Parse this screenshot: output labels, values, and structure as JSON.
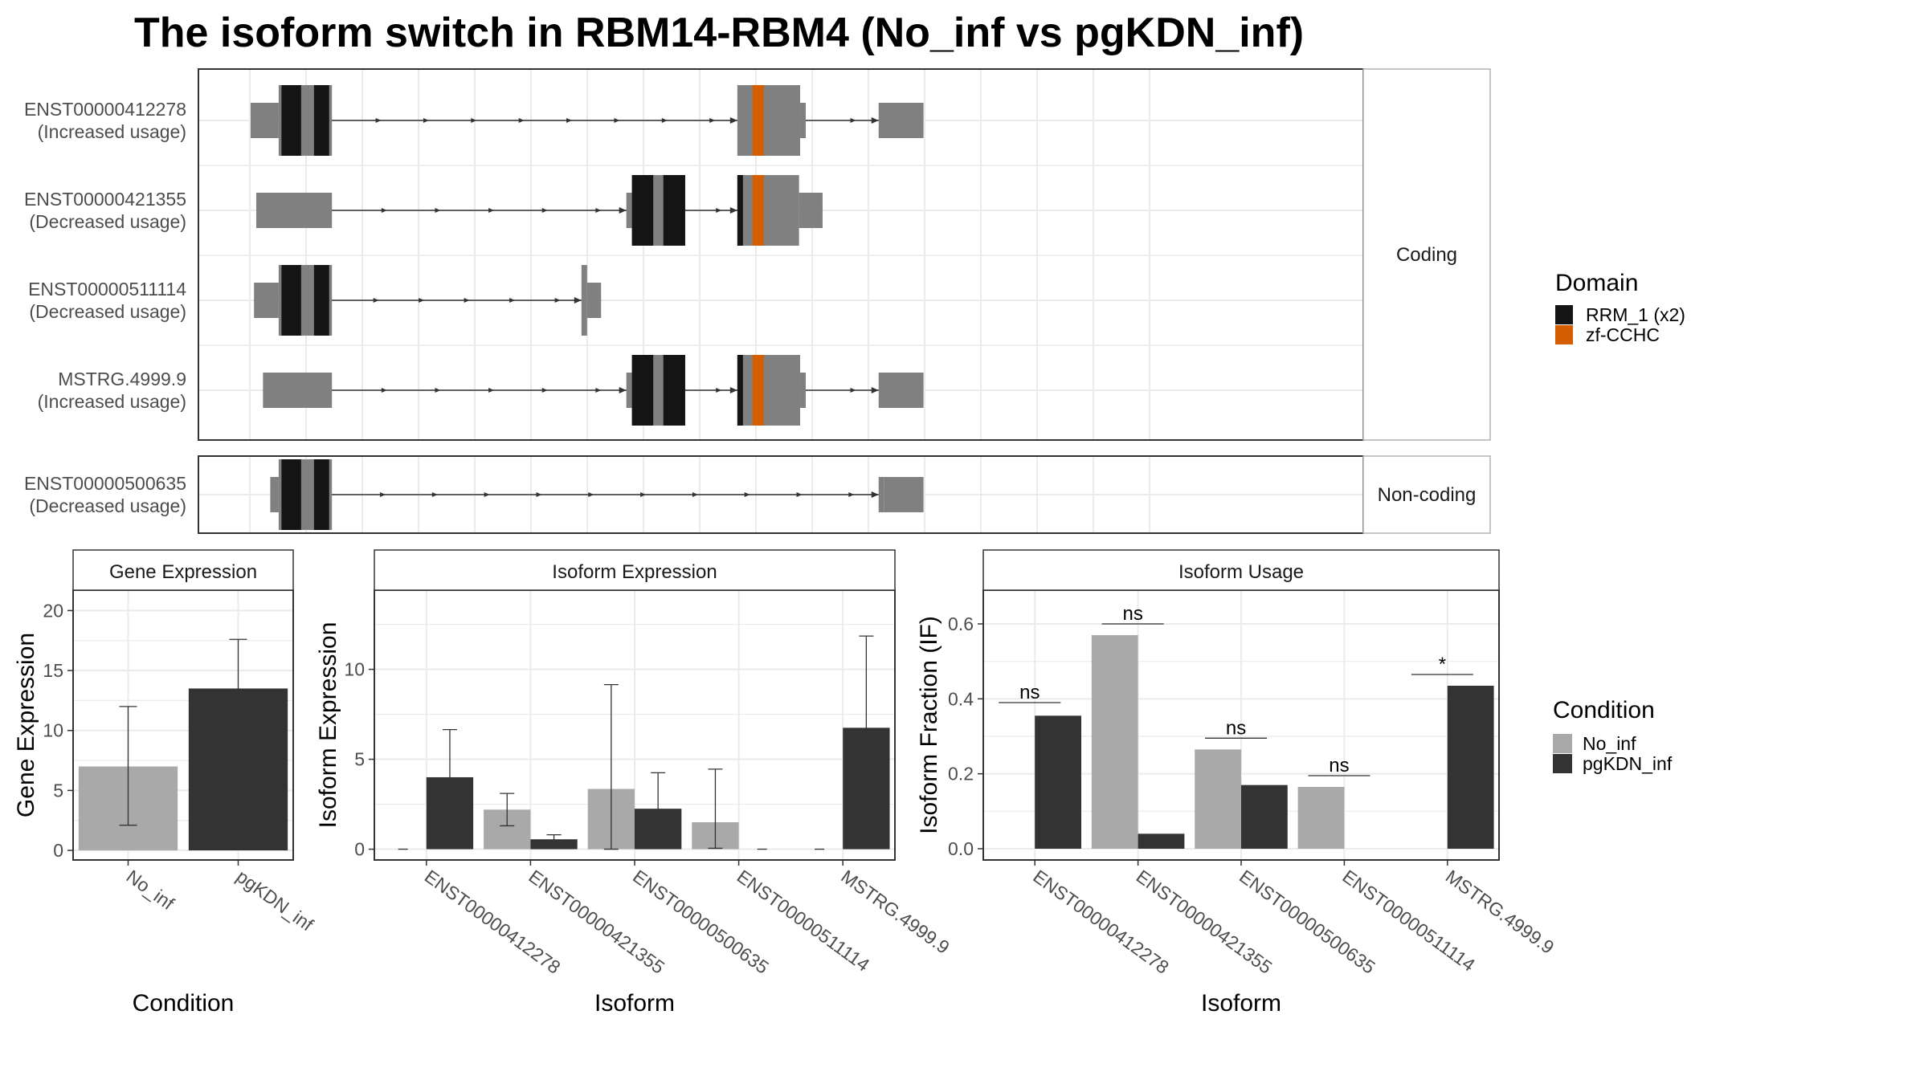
{
  "title": "The isoform switch in RBM14-RBM4 (No_inf vs pgKDN_inf)",
  "colors": {
    "exon": "#808080",
    "rrm": "#141414",
    "zf": "#D55E00",
    "no_inf": "#A9A9A9",
    "pgkdn_inf": "#333333",
    "grid": "#EBEBEB",
    "strip": "#FFFFFF"
  },
  "structure": {
    "x_range": [
      0,
      100
    ],
    "panels": [
      {
        "strip": "Coding",
        "transcripts": [
          {
            "id": "ENST00000412278",
            "usage": "(Increased usage)",
            "exons": [
              {
                "start": 0,
                "end": 5,
                "h": "utr"
              },
              {
                "start": 5,
                "end": 14.5,
                "h": "cds",
                "domains": [
                  {
                    "start": 5.5,
                    "end": 9,
                    "d": "RRM_1 (x2)"
                  },
                  {
                    "start": 11.3,
                    "end": 14,
                    "d": "RRM_1 (x2)"
                  }
                ]
              },
              {
                "start": 86.8,
                "end": 99,
                "h": "cds",
                "utr_right": [
                  98,
                  99
                ],
                "domains": [
                  {
                    "start": 89.5,
                    "end": 91.5,
                    "d": "zf-CCHC"
                  }
                ]
              },
              {
                "start": 112,
                "end": 120,
                "h": "utr"
              }
            ]
          },
          {
            "id": "ENST00000421355",
            "usage": "(Decreased usage)",
            "exons": [
              {
                "start": 1,
                "end": 14.5,
                "h": "utr"
              },
              {
                "start": 67,
                "end": 77.5,
                "h": "cds",
                "utr_left": [
                  67,
                  68
                ],
                "domains": [
                  {
                    "start": 68,
                    "end": 71.8,
                    "d": "RRM_1 (x2)"
                  },
                  {
                    "start": 73.6,
                    "end": 77.5,
                    "d": "RRM_1 (x2)"
                  }
                ]
              },
              {
                "start": 86.8,
                "end": 102,
                "h": "cds",
                "utr_right": [
                  97.8,
                  102
                ],
                "domains": [
                  {
                    "start": 86.8,
                    "end": 87.8,
                    "d": "RRM_1 (x2)"
                  },
                  {
                    "start": 89.5,
                    "end": 91.5,
                    "d": "zf-CCHC"
                  }
                ]
              }
            ]
          },
          {
            "id": "ENST00000511114",
            "usage": "(Decreased usage)",
            "exons": [
              {
                "start": 0.6,
                "end": 5,
                "h": "utr"
              },
              {
                "start": 5,
                "end": 14.5,
                "h": "cds",
                "domains": [
                  {
                    "start": 5.5,
                    "end": 9,
                    "d": "RRM_1 (x2)"
                  },
                  {
                    "start": 11.3,
                    "end": 14,
                    "d": "RRM_1 (x2)"
                  }
                ]
              },
              {
                "start": 59,
                "end": 62.5,
                "h": "cds",
                "utr_right": [
                  60,
                  62.5
                ],
                "domains": []
              }
            ]
          },
          {
            "id": "MSTRG.4999.9",
            "usage": "(Increased usage)",
            "exons": [
              {
                "start": 2.2,
                "end": 14.5,
                "h": "utr"
              },
              {
                "start": 67,
                "end": 77.5,
                "h": "cds",
                "utr_left": [
                  67,
                  68
                ],
                "domains": [
                  {
                    "start": 68,
                    "end": 71.8,
                    "d": "RRM_1 (x2)"
                  },
                  {
                    "start": 73.6,
                    "end": 77.5,
                    "d": "RRM_1 (x2)"
                  }
                ]
              },
              {
                "start": 86.8,
                "end": 99,
                "h": "cds",
                "utr_right": [
                  98,
                  99
                ],
                "domains": [
                  {
                    "start": 86.8,
                    "end": 87.8,
                    "d": "RRM_1 (x2)"
                  },
                  {
                    "start": 89.5,
                    "end": 91.5,
                    "d": "zf-CCHC"
                  }
                ]
              },
              {
                "start": 112,
                "end": 120,
                "h": "utr"
              }
            ]
          }
        ]
      },
      {
        "strip": "Non-coding",
        "transcripts": [
          {
            "id": "ENST00000500635",
            "usage": "(Decreased usage)",
            "exons": [
              {
                "start": 3.5,
                "end": 5,
                "h": "utr"
              },
              {
                "start": 5,
                "end": 14.5,
                "h": "cds",
                "domains": [
                  {
                    "start": 5.5,
                    "end": 9,
                    "d": "RRM_1 (x2)"
                  },
                  {
                    "start": 11.3,
                    "end": 14,
                    "d": "RRM_1 (x2)"
                  }
                ]
              },
              {
                "start": 112,
                "end": 120,
                "h": "utr",
                "stub": [
                  112,
                  113
                ]
              }
            ]
          }
        ]
      }
    ],
    "legend": {
      "title": "Domain",
      "entries": [
        {
          "label": "RRM_1 (x2)",
          "color": "#141414"
        },
        {
          "label": "zf-CCHC",
          "color": "#D55E00"
        }
      ]
    }
  },
  "chart_data": [
    {
      "type": "bar",
      "title": "Gene Expression",
      "xlabel": "Condition",
      "ylabel": "Gene Expression",
      "categories": [
        "No_inf",
        "pgKDN_inf"
      ],
      "values": [
        7.0,
        13.5
      ],
      "error": [
        [
          2.1,
          12.0
        ],
        [
          9.6,
          17.6
        ]
      ],
      "ylim": [
        -0.8,
        21.7
      ],
      "yticks": [
        0,
        5,
        10,
        15,
        20
      ],
      "ytick_labels": [
        "0",
        "5",
        "10",
        "15",
        "20"
      ]
    },
    {
      "type": "bar",
      "title": "Isoform Expression",
      "xlabel": "Isoform",
      "ylabel": "Isoform Expression",
      "categories": [
        "ENST00000412278",
        "ENST00000421355",
        "ENST00000500635",
        "ENST00000511114",
        "MSTRG.4999.9"
      ],
      "series": [
        {
          "name": "No_inf",
          "values": [
            0,
            2.2,
            3.35,
            1.5,
            0
          ],
          "error": [
            null,
            [
              1.3,
              3.1
            ],
            [
              0,
              9.15
            ],
            [
              0.05,
              4.45
            ],
            null
          ]
        },
        {
          "name": "pgKDN_inf",
          "values": [
            4.0,
            0.55,
            2.25,
            0,
            6.75
          ],
          "error": [
            [
              1.35,
              6.65
            ],
            [
              0.3,
              0.8
            ],
            [
              0.3,
              4.25
            ],
            null,
            [
              1.65,
              11.85
            ]
          ]
        }
      ],
      "ylim": [
        -0.6,
        14.4
      ],
      "yticks": [
        0,
        5,
        10
      ],
      "ytick_labels": [
        "0",
        "5",
        "10"
      ]
    },
    {
      "type": "bar",
      "title": "Isoform Usage",
      "xlabel": "Isoform",
      "ylabel": "Isoform Fraction (IF)",
      "categories": [
        "ENST00000412278",
        "ENST00000421355",
        "ENST00000500635",
        "ENST00000511114",
        "MSTRG.4999.9"
      ],
      "series": [
        {
          "name": "No_inf",
          "values": [
            0,
            0.57,
            0.265,
            0.165,
            0
          ]
        },
        {
          "name": "pgKDN_inf",
          "values": [
            0.355,
            0.04,
            0.17,
            0,
            0.435
          ]
        }
      ],
      "significance": [
        "ns",
        "ns",
        "ns",
        "ns",
        "*"
      ],
      "sig_y": [
        0.39,
        0.6,
        0.295,
        0.195,
        0.465
      ],
      "ylim": [
        -0.03,
        0.69
      ],
      "yticks": [
        0,
        0.2,
        0.4,
        0.6
      ],
      "ytick_labels": [
        "0.0",
        "0.2",
        "0.4",
        "0.6"
      ]
    }
  ],
  "condition_legend": {
    "title": "Condition",
    "entries": [
      {
        "label": "No_inf",
        "color": "#A9A9A9"
      },
      {
        "label": "pgKDN_inf",
        "color": "#333333"
      }
    ]
  }
}
